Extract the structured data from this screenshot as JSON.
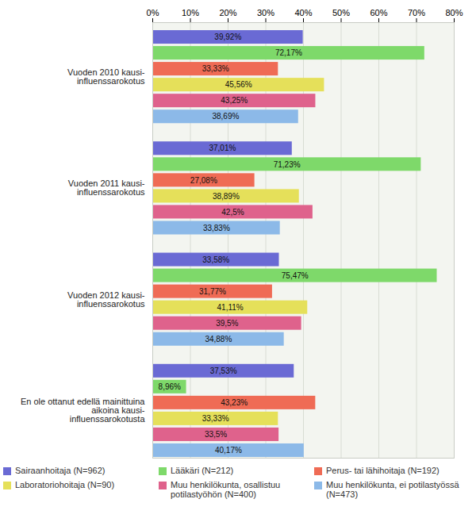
{
  "chart_data": {
    "type": "bar",
    "orientation": "horizontal",
    "categories": [
      "Vuoden 2010 kausi-influenssarokotus",
      "Vuoden 2011 kausi-influenssarokotus",
      "Vuoden 2012 kausi-influenssarokotus",
      "En ole ottanut edellä mainittuina aikoina kausi-influenssarokotusta"
    ],
    "series": [
      {
        "name": "Sairaanhoitaja (N=962)",
        "color": "#6a6ad4",
        "values": [
          39.92,
          37.01,
          33.58,
          37.53
        ],
        "value_labels": [
          "39,92%",
          "37,01%",
          "33,58%",
          "37,53%"
        ]
      },
      {
        "name": "Lääkäri (N=212)",
        "color": "#7ed96a",
        "values": [
          72.17,
          71.23,
          75.47,
          8.96
        ],
        "value_labels": [
          "72,17%",
          "71,23%",
          "75,47%",
          "8,96%"
        ]
      },
      {
        "name": "Perus- tai lähihoitaja (N=192)",
        "color": "#ef6b55",
        "values": [
          33.33,
          27.08,
          31.77,
          43.23
        ],
        "value_labels": [
          "33,33%",
          "27,08%",
          "31,77%",
          "43,23%"
        ]
      },
      {
        "name": "Laboratoriohoitaja (N=90)",
        "color": "#e5e05a",
        "values": [
          45.56,
          38.89,
          41.11,
          33.33
        ],
        "value_labels": [
          "45,56%",
          "38,89%",
          "41,11%",
          "33,33%"
        ]
      },
      {
        "name": "Muu henkilökunta, osallistuu potilastyöhön (N=400)",
        "color": "#df628c",
        "values": [
          43.25,
          42.5,
          39.5,
          33.5
        ],
        "value_labels": [
          "43,25%",
          "42,5%",
          "39,5%",
          "33,5%"
        ]
      },
      {
        "name": "Muu henkilökunta, ei potilastyössä (N=473)",
        "color": "#8cb9e8",
        "values": [
          38.69,
          33.83,
          34.88,
          40.17
        ],
        "value_labels": [
          "38,69%",
          "33,83%",
          "34,88%",
          "40,17%"
        ]
      }
    ],
    "xlim": [
      0,
      80
    ],
    "xticks": [
      {
        "value": 0,
        "label": "0%"
      },
      {
        "value": 10,
        "label": "10%"
      },
      {
        "value": 20,
        "label": "20%"
      },
      {
        "value": 30,
        "label": "30%"
      },
      {
        "value": 40,
        "label": "40%"
      },
      {
        "value": 50,
        "label": "50%"
      },
      {
        "value": 60,
        "label": "60%"
      },
      {
        "value": 70,
        "label": "70%"
      },
      {
        "value": 80,
        "label": "80%"
      }
    ],
    "grid": true,
    "data_labels": true,
    "legend": "bottom"
  }
}
